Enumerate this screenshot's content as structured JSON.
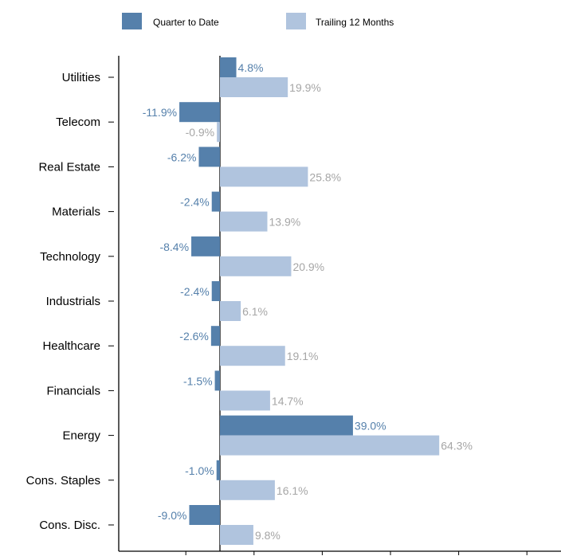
{
  "chart_data": {
    "type": "bar",
    "orientation": "horizontal",
    "categories": [
      "Utilities",
      "Telecom",
      "Real Estate",
      "Materials",
      "Technology",
      "Industrials",
      "Healthcare",
      "Financials",
      "Energy",
      "Cons. Staples",
      "Cons. Disc."
    ],
    "series": [
      {
        "name": "Quarter to Date",
        "color": "#5580AB",
        "label_color": "#5580AB",
        "values": [
          4.8,
          -11.9,
          -6.2,
          -2.4,
          -8.4,
          -2.4,
          -2.6,
          -1.5,
          39.0,
          -1.0,
          -9.0
        ],
        "labels": [
          "4.8%",
          "-11.9%",
          "-6.2%",
          "-2.4%",
          "-8.4%",
          "-2.4%",
          "-2.6%",
          "-1.5%",
          "39.0%",
          "-1.0%",
          "-9.0%"
        ]
      },
      {
        "name": "Trailing 12 Months",
        "color": "#B0C4DE",
        "label_color": "#A6A6A6",
        "values": [
          19.9,
          -0.9,
          25.8,
          13.9,
          20.9,
          6.1,
          19.1,
          14.7,
          64.3,
          16.1,
          9.8
        ],
        "labels": [
          "19.9%",
          "-0.9%",
          "25.8%",
          "13.9%",
          "20.9%",
          "6.1%",
          "19.1%",
          "14.7%",
          "64.3%",
          "16.1%",
          "9.8%"
        ]
      }
    ],
    "xlim": [
      -30,
      100
    ],
    "legend_position": "top",
    "grid": false
  }
}
